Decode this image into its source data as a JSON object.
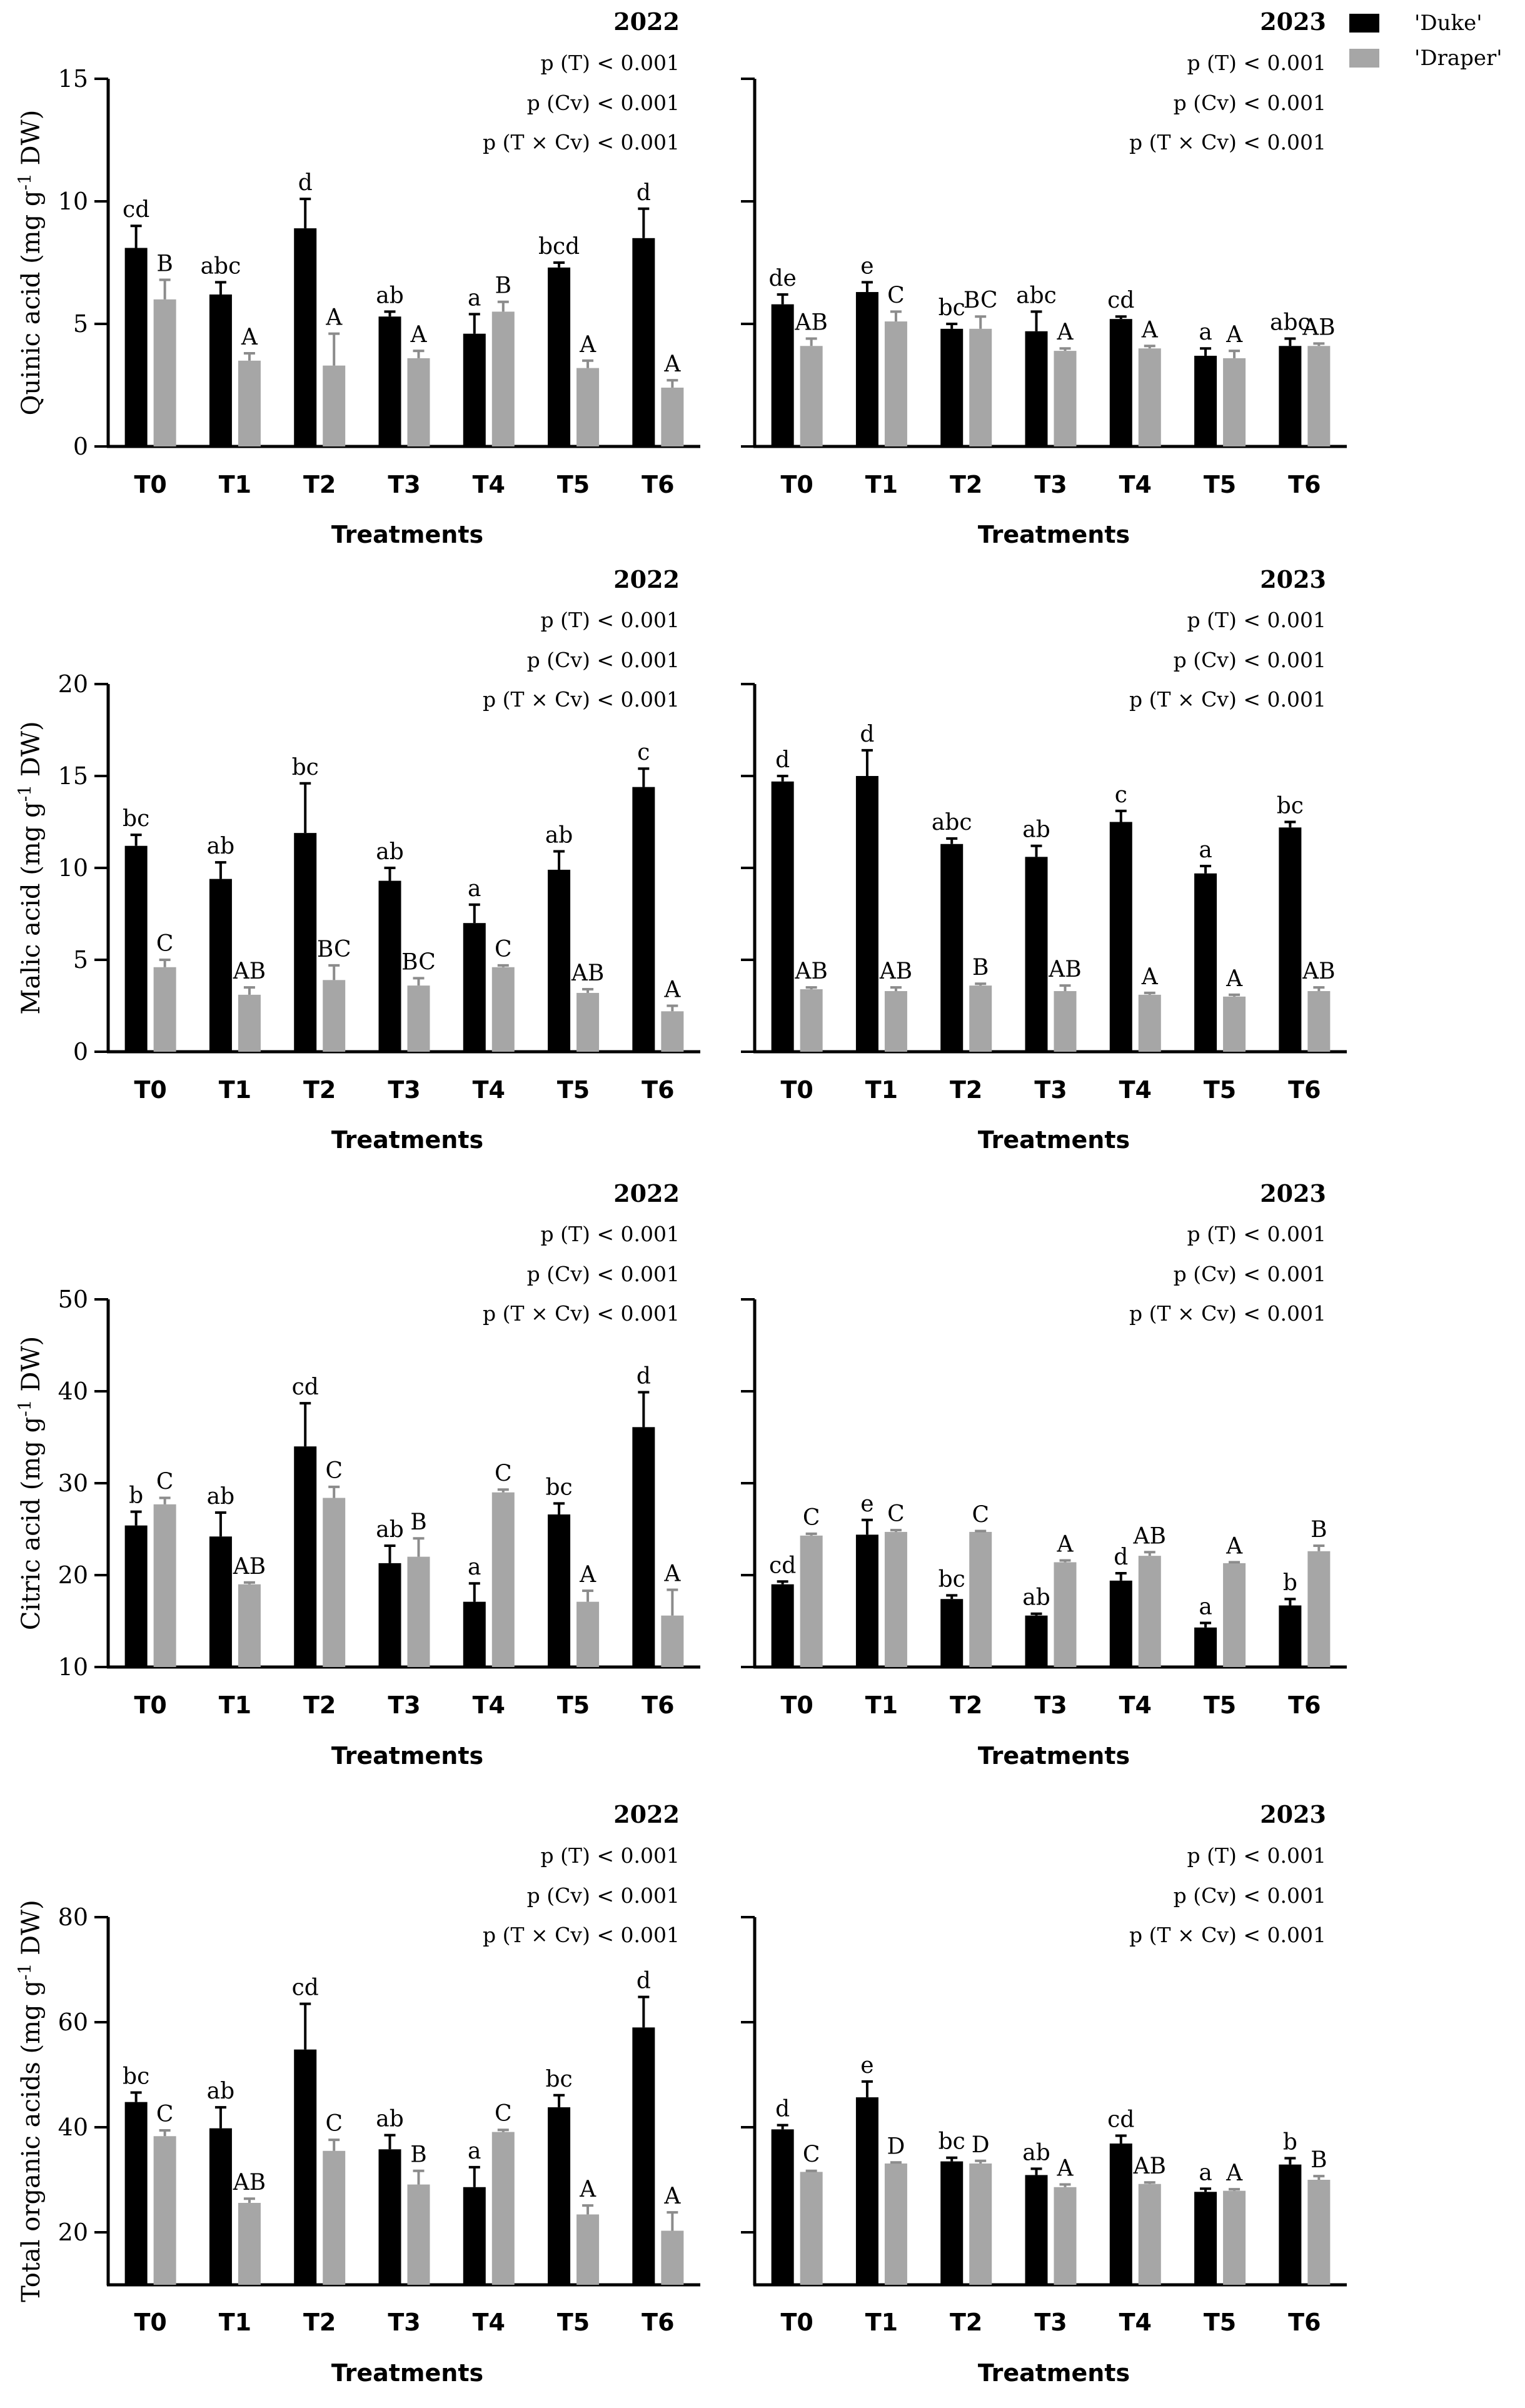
{
  "legend": {
    "items": [
      {
        "name": "'Duke'",
        "color": "#000000"
      },
      {
        "name": "'Draper'",
        "color": "#a6a6a6"
      }
    ]
  },
  "chart_data": [
    {
      "type": "bar",
      "title": "2022",
      "ylabel": "Quinic acid (mg g-1 DW)",
      "ylabel_main": "Quinic acid (mg g",
      "ylabel_sup": "-1",
      "ylabel_tail": " DW)",
      "xlabel": "Treatments",
      "categories": [
        "T0",
        "T1",
        "T2",
        "T3",
        "T4",
        "T5",
        "T6"
      ],
      "ylim": [
        0,
        15
      ],
      "yticks": [
        0,
        5,
        10,
        15
      ],
      "stats": [
        "p (T) < 0.001",
        "p (Cv) < 0.001",
        "p (T × Cv) < 0.001"
      ],
      "series": [
        {
          "name": "'Duke'",
          "values": [
            8.1,
            6.2,
            8.9,
            5.3,
            4.6,
            7.3,
            8.5
          ],
          "errors": [
            0.9,
            0.5,
            1.2,
            0.2,
            0.8,
            0.2,
            1.2
          ],
          "letters": [
            "cd",
            "abc",
            "d",
            "ab",
            "a",
            "bcd",
            "d"
          ]
        },
        {
          "name": "'Draper'",
          "values": [
            6.0,
            3.5,
            3.3,
            3.6,
            5.5,
            3.2,
            2.4
          ],
          "errors": [
            0.8,
            0.3,
            1.3,
            0.3,
            0.4,
            0.3,
            0.3
          ],
          "letters": [
            "B",
            "A",
            "A",
            "A",
            "B",
            "A",
            "A"
          ]
        }
      ]
    },
    {
      "type": "bar",
      "title": "2023",
      "ylabel": "",
      "ylabel_main": "",
      "ylabel_sup": "",
      "ylabel_tail": "",
      "xlabel": "Treatments",
      "categories": [
        "T0",
        "T1",
        "T2",
        "T3",
        "T4",
        "T5",
        "T6"
      ],
      "ylim": [
        0,
        15
      ],
      "yticks": [
        0,
        5,
        10,
        15
      ],
      "stats": [
        "p (T) < 0.001",
        "p (Cv) < 0.001",
        "p (T × Cv) < 0.001"
      ],
      "series": [
        {
          "name": "'Duke'",
          "values": [
            5.8,
            6.3,
            4.8,
            4.7,
            5.2,
            3.7,
            4.1
          ],
          "errors": [
            0.4,
            0.4,
            0.2,
            0.8,
            0.1,
            0.3,
            0.3
          ],
          "letters": [
            "de",
            "e",
            "bc",
            "abc",
            "cd",
            "a",
            "abc"
          ]
        },
        {
          "name": "'Draper'",
          "values": [
            4.1,
            5.1,
            4.8,
            3.9,
            4.0,
            3.6,
            4.1
          ],
          "errors": [
            0.3,
            0.4,
            0.5,
            0.1,
            0.1,
            0.3,
            0.1
          ],
          "letters": [
            "AB",
            "C",
            "BC",
            "A",
            "A",
            "A",
            "AB"
          ]
        }
      ]
    },
    {
      "type": "bar",
      "title": "2022",
      "ylabel": "Malic acid (mg g-1 DW)",
      "ylabel_main": "Malic acid (mg g",
      "ylabel_sup": "-1",
      "ylabel_tail": " DW)",
      "xlabel": "Treatments",
      "categories": [
        "T0",
        "T1",
        "T2",
        "T3",
        "T4",
        "T5",
        "T6"
      ],
      "ylim": [
        0,
        20
      ],
      "yticks": [
        0,
        5,
        10,
        15,
        20
      ],
      "stats": [
        "p (T) < 0.001",
        "p (Cv) < 0.001",
        "p (T × Cv) < 0.001"
      ],
      "series": [
        {
          "name": "'Duke'",
          "values": [
            11.2,
            9.4,
            11.9,
            9.3,
            7.0,
            9.9,
            14.4
          ],
          "errors": [
            0.6,
            0.9,
            2.7,
            0.7,
            1.0,
            1.0,
            1.0
          ],
          "letters": [
            "bc",
            "ab",
            "bc",
            "ab",
            "a",
            "ab",
            "c"
          ]
        },
        {
          "name": "'Draper'",
          "values": [
            4.6,
            3.1,
            3.9,
            3.6,
            4.6,
            3.2,
            2.2
          ],
          "errors": [
            0.4,
            0.4,
            0.8,
            0.4,
            0.1,
            0.2,
            0.3
          ],
          "letters": [
            "C",
            "AB",
            "BC",
            "BC",
            "C",
            "AB",
            "A"
          ]
        }
      ]
    },
    {
      "type": "bar",
      "title": "2023",
      "ylabel": "",
      "ylabel_main": "",
      "ylabel_sup": "",
      "ylabel_tail": "",
      "xlabel": "Treatments",
      "categories": [
        "T0",
        "T1",
        "T2",
        "T3",
        "T4",
        "T5",
        "T6"
      ],
      "ylim": [
        0,
        20
      ],
      "yticks": [
        0,
        5,
        10,
        15,
        20
      ],
      "stats": [
        "p (T) < 0.001",
        "p (Cv) < 0.001",
        "p (T × Cv) < 0.001"
      ],
      "series": [
        {
          "name": "'Duke'",
          "values": [
            14.7,
            15.0,
            11.3,
            10.6,
            12.5,
            9.7,
            12.2
          ],
          "errors": [
            0.3,
            1.4,
            0.3,
            0.6,
            0.6,
            0.4,
            0.3
          ],
          "letters": [
            "d",
            "d",
            "abc",
            "ab",
            "c",
            "a",
            "bc"
          ]
        },
        {
          "name": "'Draper'",
          "values": [
            3.4,
            3.3,
            3.6,
            3.3,
            3.1,
            3.0,
            3.3
          ],
          "errors": [
            0.1,
            0.2,
            0.1,
            0.3,
            0.1,
            0.1,
            0.2
          ],
          "letters": [
            "AB",
            "AB",
            "B",
            "AB",
            "A",
            "A",
            "AB"
          ]
        }
      ]
    },
    {
      "type": "bar",
      "title": "2022",
      "ylabel": "Citric acid (mg g-1 DW)",
      "ylabel_main": "Citric acid (mg g",
      "ylabel_sup": "-1",
      "ylabel_tail": " DW)",
      "xlabel": "Treatments",
      "categories": [
        "T0",
        "T1",
        "T2",
        "T3",
        "T4",
        "T5",
        "T6"
      ],
      "ylim": [
        10,
        50
      ],
      "yticks": [
        10,
        20,
        30,
        40,
        50
      ],
      "stats": [
        "p (T) < 0.001",
        "p (Cv) < 0.001",
        "p (T × Cv) < 0.001"
      ],
      "series": [
        {
          "name": "'Duke'",
          "values": [
            25.4,
            24.2,
            34.0,
            21.3,
            17.1,
            26.6,
            36.1
          ],
          "errors": [
            1.5,
            2.6,
            4.7,
            1.9,
            2.0,
            1.2,
            3.8
          ],
          "letters": [
            "b",
            "ab",
            "cd",
            "ab",
            "a",
            "bc",
            "d"
          ]
        },
        {
          "name": "'Draper'",
          "values": [
            27.7,
            19.0,
            28.4,
            22.0,
            29.0,
            17.1,
            15.6
          ],
          "errors": [
            0.7,
            0.2,
            1.2,
            2.0,
            0.3,
            1.2,
            2.8
          ],
          "letters": [
            "C",
            "AB",
            "C",
            "B",
            "C",
            "A",
            "A"
          ]
        }
      ]
    },
    {
      "type": "bar",
      "title": "2023",
      "ylabel": "",
      "ylabel_main": "",
      "ylabel_sup": "",
      "ylabel_tail": "",
      "xlabel": "Treatments",
      "categories": [
        "T0",
        "T1",
        "T2",
        "T3",
        "T4",
        "T5",
        "T6"
      ],
      "ylim": [
        10,
        50
      ],
      "yticks": [
        10,
        20,
        30,
        40,
        50
      ],
      "stats": [
        "p (T) < 0.001",
        "p (Cv) < 0.001",
        "p (T × Cv) < 0.001"
      ],
      "series": [
        {
          "name": "'Duke'",
          "values": [
            19.0,
            24.4,
            17.4,
            15.6,
            19.4,
            14.3,
            16.7
          ],
          "errors": [
            0.3,
            1.6,
            0.4,
            0.2,
            0.8,
            0.5,
            0.7
          ],
          "letters": [
            "cd",
            "e",
            "bc",
            "ab",
            "d",
            "a",
            "b"
          ]
        },
        {
          "name": "'Draper'",
          "values": [
            24.3,
            24.7,
            24.7,
            21.4,
            22.1,
            21.3,
            22.6
          ],
          "errors": [
            0.2,
            0.2,
            0.1,
            0.2,
            0.4,
            0.1,
            0.6
          ],
          "letters": [
            "C",
            "C",
            "C",
            "A",
            "AB",
            "A",
            "B"
          ]
        }
      ]
    },
    {
      "type": "bar",
      "title": "2022",
      "ylabel": "Total organic acids (mg g-1 DW)",
      "ylabel_main": "Total organic acids (mg g",
      "ylabel_sup": "-1",
      "ylabel_tail": " DW)",
      "xlabel": "Treatments",
      "categories": [
        "T0",
        "T1",
        "T2",
        "T3",
        "T4",
        "T5",
        "T6"
      ],
      "ylim": [
        10,
        80
      ],
      "yticks": [
        20,
        40,
        60,
        80
      ],
      "stats": [
        "p (T) < 0.001",
        "p (Cv) < 0.001",
        "p (T × Cv) < 0.001"
      ],
      "series": [
        {
          "name": "'Duke'",
          "values": [
            44.8,
            39.8,
            54.8,
            35.8,
            28.6,
            43.8,
            59.0
          ],
          "errors": [
            1.8,
            4.0,
            8.7,
            2.7,
            3.8,
            2.3,
            5.8
          ],
          "letters": [
            "bc",
            "ab",
            "cd",
            "ab",
            "a",
            "bc",
            "d"
          ]
        },
        {
          "name": "'Draper'",
          "values": [
            38.3,
            25.6,
            35.5,
            29.1,
            39.1,
            23.4,
            20.3
          ],
          "errors": [
            1.1,
            0.8,
            2.1,
            2.6,
            0.4,
            1.7,
            3.5
          ],
          "letters": [
            "C",
            "AB",
            "C",
            "B",
            "C",
            "A",
            "A"
          ]
        }
      ]
    },
    {
      "type": "bar",
      "title": "2023",
      "ylabel": "",
      "ylabel_main": "",
      "ylabel_sup": "",
      "ylabel_tail": "",
      "xlabel": "Treatments",
      "categories": [
        "T0",
        "T1",
        "T2",
        "T3",
        "T4",
        "T5",
        "T6"
      ],
      "ylim": [
        10,
        80
      ],
      "yticks": [
        20,
        40,
        60,
        80
      ],
      "stats": [
        "p (T) < 0.001",
        "p (Cv) < 0.001",
        "p (T × Cv) < 0.001"
      ],
      "series": [
        {
          "name": "'Duke'",
          "values": [
            39.6,
            45.7,
            33.5,
            30.9,
            36.9,
            27.7,
            32.9
          ],
          "errors": [
            0.8,
            3.0,
            0.7,
            1.2,
            1.5,
            0.6,
            1.2
          ],
          "letters": [
            "d",
            "e",
            "bc",
            "ab",
            "cd",
            "a",
            "b"
          ]
        },
        {
          "name": "'Draper'",
          "values": [
            31.5,
            33.1,
            33.1,
            28.6,
            29.2,
            27.9,
            30.0
          ],
          "errors": [
            0.2,
            0.2,
            0.5,
            0.5,
            0.3,
            0.3,
            0.7
          ],
          "letters": [
            "C",
            "D",
            "D",
            "A",
            "AB",
            "A",
            "B"
          ]
        }
      ]
    }
  ]
}
